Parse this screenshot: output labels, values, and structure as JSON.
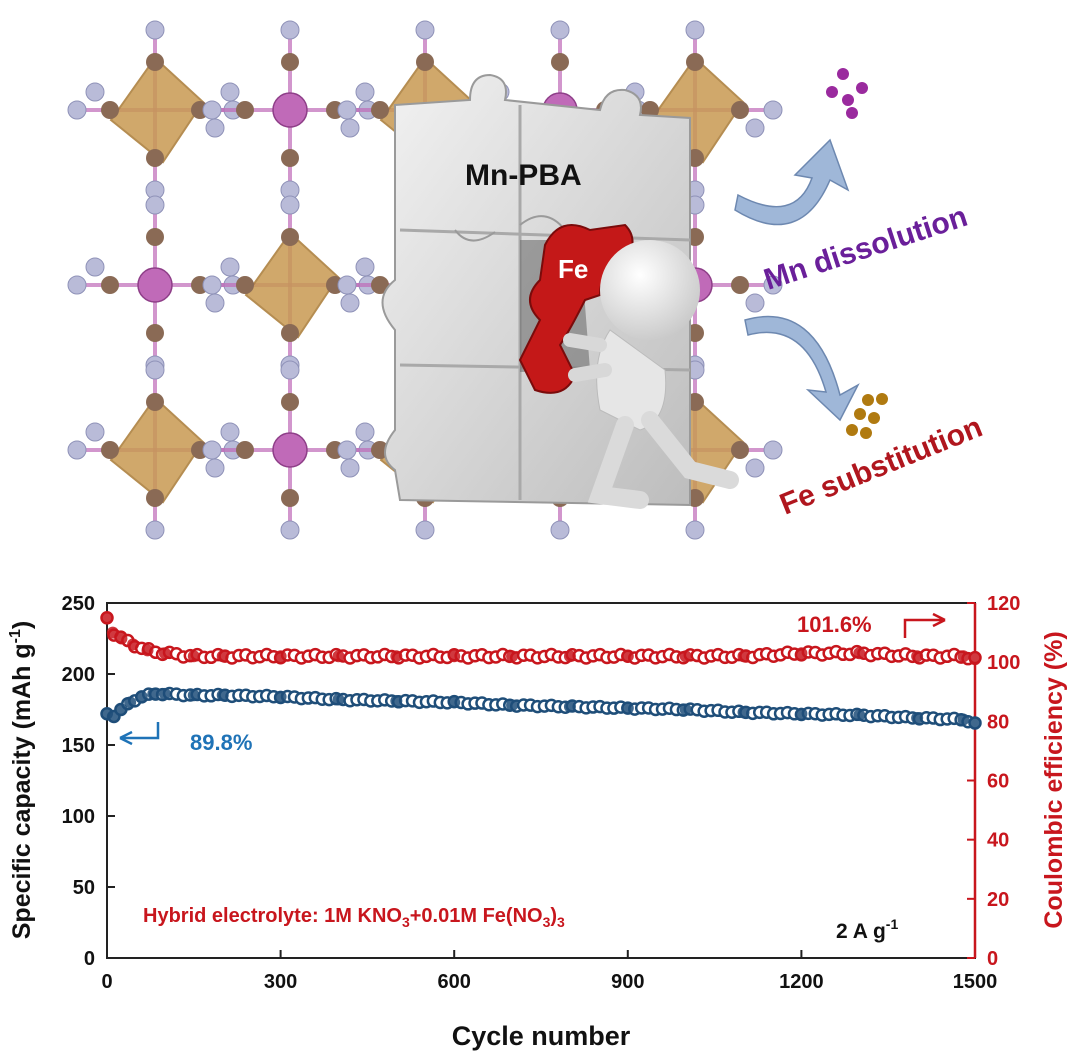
{
  "illustration": {
    "puzzle_label": "Mn-PBA",
    "piece_label": "Fe",
    "arrow_top_label": "Mn dissolution",
    "arrow_bottom_label": "Fe substitution",
    "colors": {
      "octahedron": "#c89a52",
      "mn_atom": "#c06ab8",
      "n_atom": "#b9bbd8",
      "c_atom": "#8a6a55",
      "puzzle": "#dcdcdc",
      "fe_piece": "#c41818",
      "mn_text": "#6a1f9a",
      "fe_text": "#b0161e",
      "arrow": "#9fb7d8",
      "mn_dots": "#9a2a9e",
      "fe_dots": "#b07a10"
    }
  },
  "chart_data": {
    "type": "scatter",
    "title": "",
    "xlabel": "Cycle number",
    "ylabel_left": "Specific capacity (mAh g",
    "ylabel_left_sup": "-1",
    "ylabel_left_end": ")",
    "ylabel_right": "Coulombic efficiency (%)",
    "xlim": [
      0,
      1500
    ],
    "ylim_left": [
      0,
      250
    ],
    "ylim_right": [
      0,
      120
    ],
    "xticks": [
      0,
      300,
      600,
      900,
      1200,
      1500
    ],
    "yticks_left": [
      0,
      50,
      100,
      150,
      200,
      250
    ],
    "yticks_right": [
      0,
      20,
      40,
      60,
      80,
      100,
      120
    ],
    "series": [
      {
        "axis": "left",
        "color": "#1f4e79",
        "points": [
          [
            0,
            172
          ],
          [
            10,
            170
          ],
          [
            25,
            175
          ],
          [
            40,
            180
          ],
          [
            60,
            184
          ],
          [
            80,
            186
          ],
          [
            100,
            186
          ],
          [
            150,
            185
          ],
          [
            200,
            185
          ],
          [
            300,
            184
          ],
          [
            400,
            182
          ],
          [
            500,
            181
          ],
          [
            600,
            180
          ],
          [
            700,
            178
          ],
          [
            800,
            177
          ],
          [
            900,
            176
          ],
          [
            1000,
            175
          ],
          [
            1100,
            173
          ],
          [
            1200,
            172
          ],
          [
            1300,
            171
          ],
          [
            1400,
            169
          ],
          [
            1480,
            168
          ],
          [
            1500,
            165
          ]
        ]
      },
      {
        "axis": "right",
        "color": "#c8161d",
        "points": [
          [
            0,
            115
          ],
          [
            10,
            110
          ],
          [
            25,
            108
          ],
          [
            45,
            106
          ],
          [
            70,
            104
          ],
          [
            100,
            103
          ],
          [
            150,
            102
          ],
          [
            200,
            102
          ],
          [
            300,
            102
          ],
          [
            400,
            102
          ],
          [
            500,
            102
          ],
          [
            600,
            102
          ],
          [
            700,
            102
          ],
          [
            800,
            102
          ],
          [
            900,
            102
          ],
          [
            1000,
            102
          ],
          [
            1100,
            102
          ],
          [
            1200,
            103
          ],
          [
            1300,
            103
          ],
          [
            1400,
            102
          ],
          [
            1480,
            102
          ],
          [
            1500,
            101
          ]
        ]
      }
    ],
    "annotations": {
      "retention_label": "89.8%",
      "ce_label": "101.6%",
      "electrolyte_prefix": "Hybrid electrolyte: 1M KNO",
      "electrolyte_sub1": "3",
      "electrolyte_mid": "+0.01M Fe(NO",
      "electrolyte_sub2": "3",
      "electrolyte_end": ")",
      "electrolyte_sub3": "3",
      "rate_prefix": "2 A g",
      "rate_sup": "-1"
    }
  }
}
